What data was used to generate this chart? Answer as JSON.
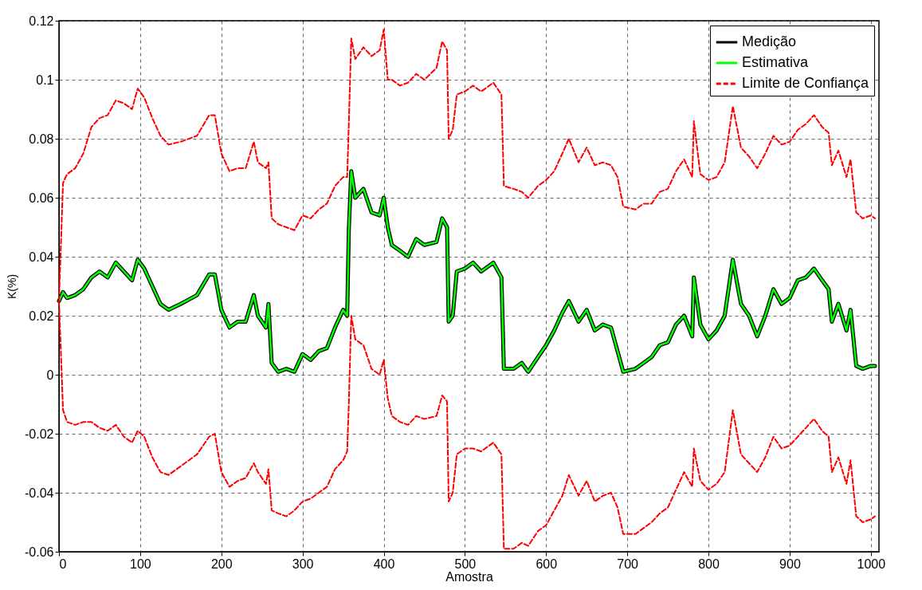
{
  "chart_data": {
    "type": "line",
    "xlabel": "Amostra",
    "ylabel": "K(%)",
    "xlim": [
      0,
      1010
    ],
    "xticks": [
      0,
      100,
      200,
      300,
      400,
      500,
      600,
      700,
      800,
      900,
      1000
    ],
    "ylim": [
      -0.06,
      0.12
    ],
    "yticks": [
      -0.06,
      -0.04,
      -0.02,
      0,
      0.02,
      0.04,
      0.06,
      0.08,
      0.1,
      0.12
    ],
    "grid": true,
    "legend": "top right",
    "x": [
      0,
      5,
      10,
      20,
      30,
      40,
      50,
      60,
      70,
      80,
      90,
      97,
      105,
      115,
      125,
      135,
      150,
      170,
      185,
      192,
      200,
      210,
      220,
      230,
      240,
      245,
      255,
      258,
      262,
      270,
      280,
      290,
      300,
      310,
      320,
      330,
      340,
      350,
      355,
      357,
      360,
      365,
      375,
      385,
      395,
      400,
      405,
      410,
      420,
      430,
      440,
      450,
      465,
      472,
      478,
      480,
      485,
      490,
      500,
      510,
      520,
      535,
      545,
      548,
      560,
      570,
      578,
      590,
      600,
      610,
      620,
      628,
      640,
      650,
      660,
      670,
      680,
      688,
      695,
      710,
      720,
      730,
      740,
      750,
      760,
      770,
      780,
      782,
      790,
      800,
      810,
      820,
      830,
      840,
      850,
      860,
      870,
      880,
      890,
      900,
      910,
      920,
      930,
      940,
      948,
      952,
      960,
      970,
      975,
      982,
      990,
      1000,
      1005
    ],
    "series": [
      {
        "name": "Medição",
        "color": "#000000",
        "line_style": "solid",
        "values": [
          0.025,
          0.028,
          0.026,
          0.027,
          0.029,
          0.033,
          0.035,
          0.033,
          0.038,
          0.035,
          0.032,
          0.039,
          0.036,
          0.03,
          0.024,
          0.022,
          0.024,
          0.027,
          0.034,
          0.034,
          0.022,
          0.016,
          0.018,
          0.018,
          0.027,
          0.02,
          0.016,
          0.024,
          0.004,
          0.001,
          0.002,
          0.001,
          0.007,
          0.005,
          0.008,
          0.009,
          0.016,
          0.022,
          0.02,
          0.049,
          0.069,
          0.06,
          0.063,
          0.055,
          0.054,
          0.06,
          0.05,
          0.044,
          0.042,
          0.04,
          0.046,
          0.044,
          0.045,
          0.053,
          0.05,
          0.018,
          0.02,
          0.035,
          0.036,
          0.038,
          0.035,
          0.038,
          0.033,
          0.002,
          0.002,
          0.004,
          0.001,
          0.006,
          0.01,
          0.015,
          0.021,
          0.025,
          0.018,
          0.022,
          0.015,
          0.017,
          0.016,
          0.008,
          0.001,
          0.002,
          0.004,
          0.006,
          0.01,
          0.011,
          0.017,
          0.02,
          0.013,
          0.033,
          0.017,
          0.012,
          0.015,
          0.02,
          0.039,
          0.024,
          0.02,
          0.013,
          0.02,
          0.029,
          0.024,
          0.026,
          0.032,
          0.033,
          0.036,
          0.032,
          0.029,
          0.018,
          0.024,
          0.015,
          0.022,
          0.003,
          0.002,
          0.003,
          0.003
        ]
      },
      {
        "name": "Estimativa",
        "color": "#00ff00",
        "line_style": "solid",
        "values": [
          0.025,
          0.028,
          0.026,
          0.027,
          0.029,
          0.033,
          0.035,
          0.033,
          0.038,
          0.035,
          0.032,
          0.039,
          0.036,
          0.03,
          0.024,
          0.022,
          0.024,
          0.027,
          0.034,
          0.034,
          0.022,
          0.016,
          0.018,
          0.018,
          0.027,
          0.02,
          0.016,
          0.024,
          0.004,
          0.001,
          0.002,
          0.001,
          0.007,
          0.005,
          0.008,
          0.009,
          0.016,
          0.022,
          0.02,
          0.049,
          0.069,
          0.06,
          0.063,
          0.055,
          0.054,
          0.06,
          0.05,
          0.044,
          0.042,
          0.04,
          0.046,
          0.044,
          0.045,
          0.053,
          0.05,
          0.018,
          0.02,
          0.035,
          0.036,
          0.038,
          0.035,
          0.038,
          0.033,
          0.002,
          0.002,
          0.004,
          0.001,
          0.006,
          0.01,
          0.015,
          0.021,
          0.025,
          0.018,
          0.022,
          0.015,
          0.017,
          0.016,
          0.008,
          0.001,
          0.002,
          0.004,
          0.006,
          0.01,
          0.011,
          0.017,
          0.02,
          0.013,
          0.033,
          0.017,
          0.012,
          0.015,
          0.02,
          0.039,
          0.024,
          0.02,
          0.013,
          0.02,
          0.029,
          0.024,
          0.026,
          0.032,
          0.033,
          0.036,
          0.032,
          0.029,
          0.018,
          0.024,
          0.015,
          0.022,
          0.003,
          0.002,
          0.003,
          0.003
        ]
      },
      {
        "name": "Limite de Confiança",
        "color": "#ff0000",
        "line_style": "dashed",
        "x": [
          0,
          5,
          10,
          20,
          30,
          40,
          50,
          60,
          70,
          80,
          90,
          97,
          105,
          115,
          125,
          135,
          150,
          170,
          185,
          192,
          200,
          210,
          220,
          230,
          240,
          245,
          255,
          258,
          262,
          270,
          280,
          290,
          300,
          310,
          320,
          330,
          340,
          350,
          355,
          357,
          360,
          365,
          375,
          385,
          395,
          400,
          405,
          410,
          420,
          430,
          440,
          450,
          465,
          472,
          478,
          480,
          485,
          490,
          500,
          510,
          520,
          535,
          545,
          548,
          560,
          570,
          578,
          590,
          600,
          610,
          620,
          628,
          640,
          650,
          660,
          670,
          680,
          688,
          695,
          710,
          720,
          730,
          740,
          750,
          760,
          770,
          780,
          782,
          790,
          800,
          810,
          820,
          830,
          840,
          850,
          860,
          870,
          880,
          890,
          900,
          910,
          920,
          930,
          940,
          948,
          952,
          960,
          970,
          975,
          982,
          990,
          1000,
          1005,
          0,
          5,
          10,
          20,
          30,
          40,
          50,
          60,
          70,
          80,
          90,
          97,
          105,
          115,
          125,
          135,
          150,
          170,
          185,
          192,
          200,
          210,
          220,
          230,
          240,
          245,
          255,
          258,
          262,
          270,
          280,
          290,
          300,
          310,
          320,
          330,
          340,
          350,
          355,
          357,
          360,
          365,
          375,
          385,
          395,
          400,
          405,
          410,
          420,
          430,
          440,
          450,
          465,
          472,
          478,
          480,
          485,
          490,
          500,
          510,
          520,
          535,
          545,
          548,
          560,
          570,
          578,
          590,
          600,
          610,
          620,
          628,
          640,
          650,
          660,
          670,
          680,
          688,
          695,
          710,
          720,
          730,
          740,
          750,
          760,
          770,
          780,
          782,
          790,
          800,
          810,
          820,
          830,
          840,
          850,
          860,
          870,
          880,
          890,
          900,
          910,
          920,
          930,
          940,
          948,
          952,
          960,
          970,
          975,
          982,
          990,
          1000,
          1005
        ],
        "values": [
          0.025,
          0.065,
          0.068,
          0.07,
          0.075,
          0.084,
          0.087,
          0.088,
          0.093,
          0.092,
          0.09,
          0.097,
          0.094,
          0.087,
          0.081,
          0.078,
          0.079,
          0.081,
          0.088,
          0.088,
          0.075,
          0.069,
          0.07,
          0.07,
          0.079,
          0.072,
          0.07,
          0.072,
          0.053,
          0.051,
          0.05,
          0.049,
          0.054,
          0.053,
          0.056,
          0.058,
          0.064,
          0.067,
          0.067,
          0.085,
          0.114,
          0.107,
          0.111,
          0.108,
          0.11,
          0.117,
          0.1,
          0.1,
          0.098,
          0.099,
          0.102,
          0.1,
          0.104,
          0.113,
          0.11,
          0.08,
          0.083,
          0.095,
          0.096,
          0.098,
          0.096,
          0.099,
          0.095,
          0.064,
          0.063,
          0.062,
          0.06,
          0.064,
          0.066,
          0.069,
          0.075,
          0.08,
          0.072,
          0.077,
          0.071,
          0.072,
          0.071,
          0.067,
          0.057,
          0.056,
          0.058,
          0.058,
          0.062,
          0.063,
          0.069,
          0.073,
          0.067,
          0.086,
          0.068,
          0.066,
          0.067,
          0.072,
          0.091,
          0.077,
          0.074,
          0.07,
          0.075,
          0.081,
          0.078,
          0.079,
          0.083,
          0.085,
          0.088,
          0.084,
          0.082,
          0.071,
          0.076,
          0.067,
          0.073,
          0.055,
          0.053,
          0.054,
          0.053,
          0.025,
          -0.012,
          -0.016,
          -0.017,
          -0.016,
          -0.016,
          -0.018,
          -0.019,
          -0.017,
          -0.021,
          -0.023,
          -0.019,
          -0.021,
          -0.028,
          -0.033,
          -0.034,
          -0.031,
          -0.027,
          -0.021,
          -0.02,
          -0.033,
          -0.038,
          -0.036,
          -0.035,
          -0.03,
          -0.033,
          -0.037,
          -0.032,
          -0.046,
          -0.047,
          -0.048,
          -0.046,
          -0.043,
          -0.042,
          -0.04,
          -0.038,
          -0.032,
          -0.029,
          -0.026,
          -0.01,
          0.02,
          0.012,
          0.01,
          0.002,
          0,
          0.005,
          -0.008,
          -0.014,
          -0.016,
          -0.017,
          -0.014,
          -0.015,
          -0.014,
          -0.007,
          -0.009,
          -0.043,
          -0.04,
          -0.027,
          -0.025,
          -0.025,
          -0.026,
          -0.023,
          -0.027,
          -0.059,
          -0.059,
          -0.057,
          -0.058,
          -0.053,
          -0.051,
          -0.046,
          -0.041,
          -0.034,
          -0.041,
          -0.036,
          -0.043,
          -0.041,
          -0.04,
          -0.045,
          -0.054,
          -0.054,
          -0.052,
          -0.05,
          -0.047,
          -0.045,
          -0.039,
          -0.033,
          -0.038,
          -0.025,
          -0.036,
          -0.039,
          -0.037,
          -0.033,
          -0.012,
          -0.027,
          -0.03,
          -0.033,
          -0.028,
          -0.021,
          -0.025,
          -0.024,
          -0.021,
          -0.018,
          -0.015,
          -0.019,
          -0.021,
          -0.033,
          -0.028,
          -0.037,
          -0.029,
          -0.048,
          -0.05,
          -0.049,
          -0.048
        ]
      }
    ]
  }
}
